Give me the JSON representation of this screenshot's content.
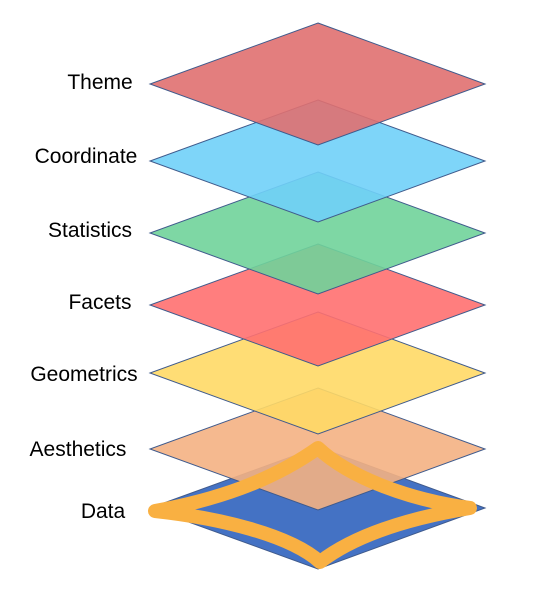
{
  "layers": [
    {
      "label": "Data",
      "color": "#4472C4"
    },
    {
      "label": "Aesthetics",
      "color": "#F4B183"
    },
    {
      "label": "Geometrics",
      "color": "#FFD966"
    },
    {
      "label": "Facets",
      "color": "#FF7070"
    },
    {
      "label": "Statistics",
      "color": "#70D39A"
    },
    {
      "label": "Coordinate",
      "color": "#70D0F8"
    },
    {
      "label": "Theme",
      "color": "#E07070"
    }
  ],
  "highlight": {
    "target": "Data",
    "color": "#F9B042"
  },
  "outline_color": "#3F5A8C"
}
